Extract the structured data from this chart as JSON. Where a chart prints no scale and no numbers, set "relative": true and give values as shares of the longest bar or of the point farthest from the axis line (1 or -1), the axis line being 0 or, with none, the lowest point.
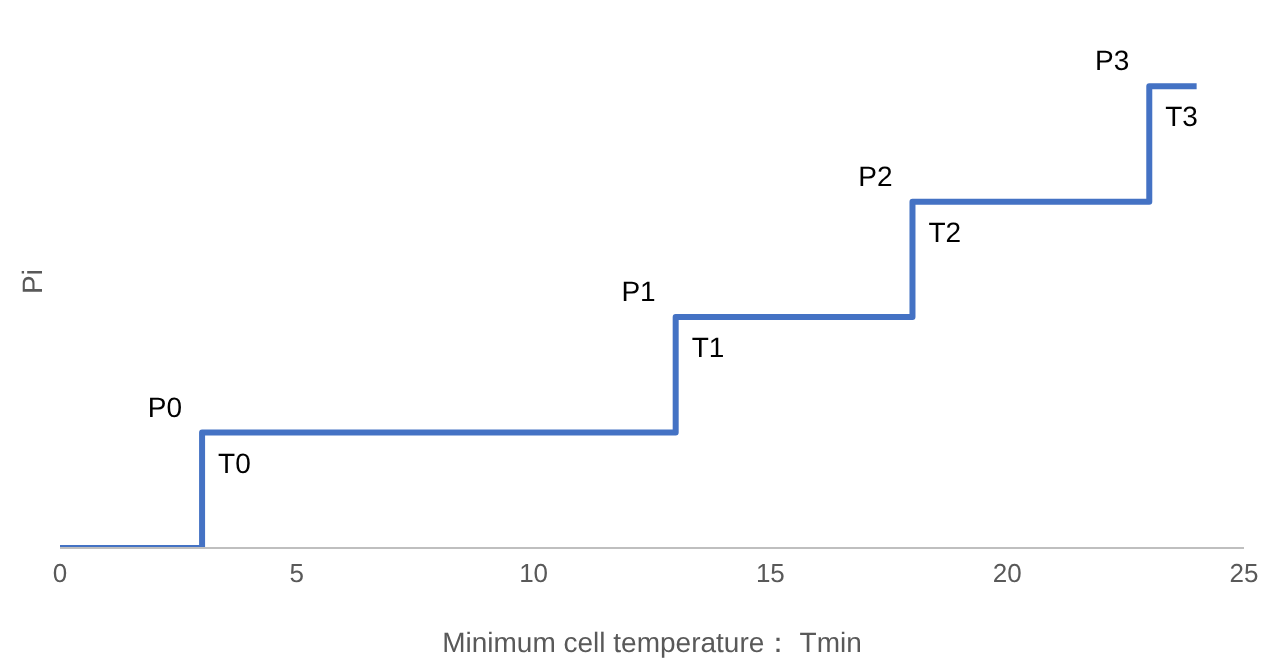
{
  "chart_data": {
    "type": "step",
    "relative": true,
    "xlabel": "Minimum cell temperature： Tmin",
    "ylabel": "Pi",
    "x": [
      0,
      3,
      13,
      18,
      23,
      24
    ],
    "series": [
      {
        "color": "#4472c4",
        "values": [
          0,
          0.25,
          0.5,
          0.75,
          1,
          1
        ]
      }
    ],
    "xlim": [
      0,
      25
    ],
    "xticks": [
      0,
      5,
      10,
      15,
      20,
      25
    ],
    "grid": false,
    "marker": "none",
    "line_style": "solid",
    "annotations": [
      {
        "text": "P0",
        "x": 3,
        "y": 0.25
      },
      {
        "text": "T0",
        "x": 3,
        "y": 0.25
      },
      {
        "text": "P1",
        "x": 13,
        "y": 0.5
      },
      {
        "text": "T1",
        "x": 13,
        "y": 0.5
      },
      {
        "text": "P2",
        "x": 18,
        "y": 0.75
      },
      {
        "text": "T2",
        "x": 18,
        "y": 0.75
      },
      {
        "text": "P3",
        "x": 23,
        "y": 1
      },
      {
        "text": "T3",
        "x": 23,
        "y": 1
      }
    ]
  }
}
